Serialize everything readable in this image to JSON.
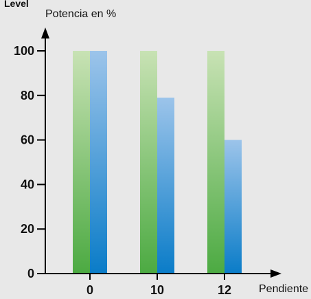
{
  "chart_data": {
    "type": "bar",
    "title": "Level",
    "ylabel": "Potencia en %",
    "xlabel": "Pendiente",
    "categories": [
      "0",
      "10",
      "12"
    ],
    "y_ticks": [
      "0",
      "20",
      "40",
      "60",
      "80",
      "100"
    ],
    "ylim": [
      0,
      110
    ],
    "grid": false,
    "series": [
      {
        "values": [
          100,
          100,
          100
        ],
        "color_top": "#c8e2b4",
        "color_bottom": "#4caa42"
      },
      {
        "values": [
          100,
          79,
          60
        ],
        "color_top": "#9cc4ea",
        "color_bottom": "#0a7cc8"
      }
    ],
    "colors": {
      "background": "#e8e8e8",
      "axis": "#000000",
      "text": "#111111"
    }
  }
}
